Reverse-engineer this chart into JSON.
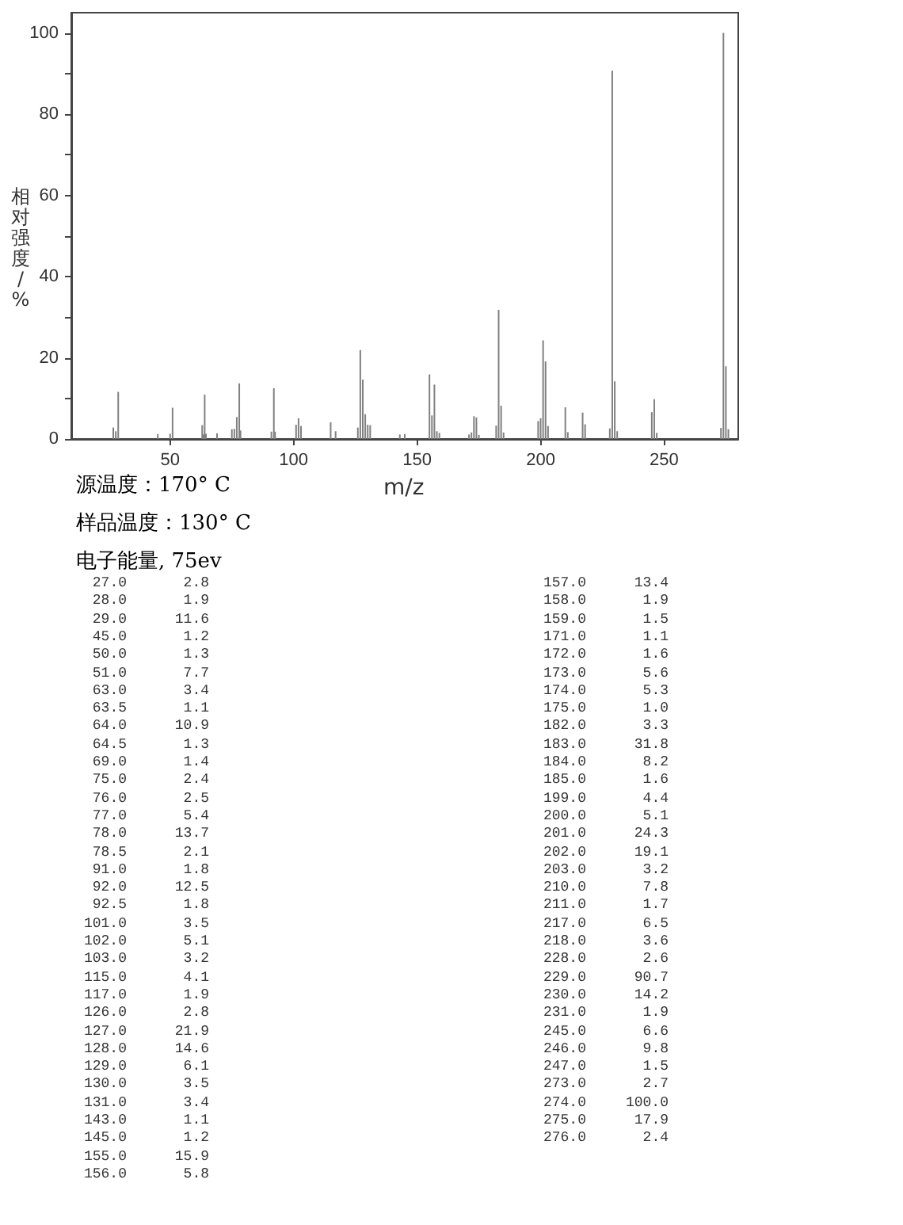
{
  "chart_data": {
    "type": "bar",
    "color": "#808080",
    "xlabel": "m/z",
    "ylabel": "相对强度/%",
    "annotations": [
      "源温度：170° C",
      "样品温度：130° C",
      "电子能量, 75ev",
      "27.0",
      "2.8",
      "28.0",
      "1.9",
      "29.0",
      "11.6",
      "45.0",
      "1.2",
      "50.0",
      "1.3",
      "51.0",
      "7.7",
      "63.0",
      "3.4",
      "63.5",
      "1.1",
      "64.0",
      "10.9",
      "64.5",
      "1.3",
      "69.0",
      "1.4",
      "75.0",
      "2.4",
      "76.0",
      "2.5",
      "77.0",
      "5.4",
      "78.0",
      "13.7",
      "78.5",
      "2.1",
      "91.0",
      "1.8",
      "92.0",
      "12.5",
      "92.5",
      "1.8",
      "101.0",
      "3.5",
      "102.0",
      "5.1",
      "103.0",
      "3.2",
      "115.0",
      "4.1",
      "117.0",
      "1.9",
      "126.0",
      "2.8",
      "127.0",
      "21.9",
      "128.0",
      "14.6",
      "129.0",
      "6.1",
      "130.0",
      "3.5",
      "131.0",
      "3.4",
      "143.0",
      "1.1",
      "145.0",
      "1.2",
      "155.0",
      "15.9",
      "156.0",
      "5.8",
      "157.0",
      "13.4",
      "158.0",
      "1.9",
      "159.0",
      "1.5",
      "171.0",
      "1.1",
      "172.0",
      "1.6",
      "173.0",
      "5.6",
      "174.0",
      "5.3",
      "175.0",
      "1.0",
      "182.0",
      "3.3",
      "183.0",
      "31.8",
      "184.0",
      "8.2",
      "185.0",
      "1.6",
      "199.0",
      "4.4",
      "200.0",
      "5.1",
      "201.0",
      "24.3",
      "202.0",
      "19.1",
      "203.0",
      "3.2",
      "210.0",
      "7.8",
      "211.0",
      "1.7",
      "217.0",
      "6.5",
      "218.0",
      "3.6",
      "228.0",
      "2.6",
      "229.0",
      "90.7",
      "230.0",
      "14.2",
      "231.0",
      "1.9",
      "245.0",
      "6.6",
      "246.0",
      "9.8",
      "247.0",
      "1.5",
      "273.0",
      "2.7",
      "274.0",
      "100.0",
      "275.0",
      "17.9",
      "276.0",
      "2.4"
    ],
    "x": [
      27,
      28,
      29,
      45,
      50,
      51,
      63,
      63.5,
      64,
      64.5,
      69,
      75,
      76,
      77,
      78,
      78.5,
      91,
      92,
      92.5,
      101,
      102,
      103,
      115,
      117,
      126,
      127,
      128,
      129,
      130,
      131,
      143,
      145,
      155,
      156,
      157,
      158,
      159,
      171,
      172,
      173,
      174,
      175,
      182,
      183,
      184,
      185,
      199,
      200,
      201,
      202,
      203,
      210,
      211,
      217,
      218,
      228,
      229,
      230,
      231,
      245,
      246,
      247,
      273,
      274,
      275,
      276
    ],
    "values": [
      2.8,
      1.9,
      11.6,
      1.2,
      1.3,
      7.7,
      3.4,
      1.1,
      10.9,
      1.3,
      1.4,
      2.4,
      2.5,
      5.4,
      13.7,
      2.1,
      1.8,
      12.5,
      1.8,
      3.5,
      5.1,
      3.2,
      4.1,
      1.9,
      2.8,
      21.9,
      14.6,
      6.1,
      3.5,
      3.4,
      1.1,
      1.2,
      15.9,
      5.8,
      13.4,
      1.9,
      1.5,
      1.1,
      1.6,
      5.6,
      5.3,
      1.0,
      3.3,
      31.8,
      8.2,
      1.6,
      4.4,
      5.1,
      24.3,
      19.1,
      3.2,
      7.8,
      1.7,
      6.5,
      3.6,
      2.6,
      90.7,
      14.2,
      1.9,
      6.6,
      9.8,
      1.5,
      2.7,
      100.0,
      17.9,
      2.4
    ],
    "xlim": [
      10,
      280
    ],
    "xticks": [
      50,
      100,
      150,
      200,
      250
    ],
    "ylim": [
      0,
      105
    ],
    "yticks": [
      0,
      {
        "value": 10,
        "label": null
      },
      20,
      {
        "value": 30,
        "label": null
      },
      40,
      {
        "value": 50,
        "label": null
      },
      60,
      {
        "value": 70,
        "label": null
      },
      80,
      {
        "value": 90,
        "label": null
      },
      100
    ],
    "grid": false
  }
}
